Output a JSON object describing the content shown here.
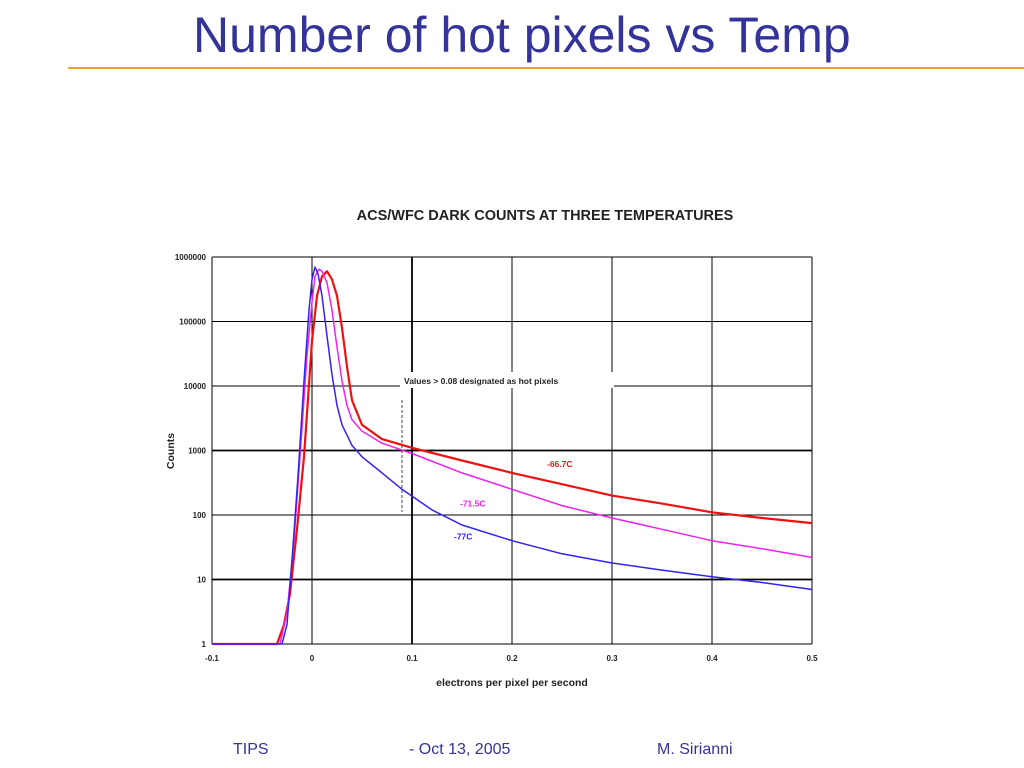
{
  "slide": {
    "title": "Number of hot pixels vs Temp",
    "accent_color": "#f0a030",
    "title_color": "#333399"
  },
  "footer": {
    "left": "TIPS",
    "middle": "- Oct 13, 2005",
    "right": "M. Sirianni"
  },
  "chart_data": {
    "type": "line",
    "title": "ACS/WFC DARK COUNTS AT THREE TEMPERATURES",
    "xlabel": "electrons per pixel per second",
    "ylabel": "Counts",
    "xlim": [
      -0.1,
      0.5
    ],
    "ylim": [
      1,
      1000000
    ],
    "yscale": "log",
    "grid": true,
    "x_ticks": [
      "-0.1",
      "0",
      "0.1",
      "0.2",
      "0.3",
      "0.4",
      "0.5"
    ],
    "y_ticks": [
      "1",
      "10",
      "100",
      "1000",
      "10000",
      "100000",
      "1000000"
    ],
    "annotation": {
      "text": "Values > 0.08 designated as hot pixels",
      "x": 0.09
    },
    "series": [
      {
        "name": "-66.7C",
        "color": "#ee1111",
        "x": [
          -0.1,
          -0.035,
          -0.028,
          -0.022,
          -0.015,
          -0.008,
          0.0,
          0.005,
          0.01,
          0.015,
          0.02,
          0.025,
          0.03,
          0.035,
          0.04,
          0.05,
          0.07,
          0.1,
          0.15,
          0.2,
          0.25,
          0.3,
          0.35,
          0.4,
          0.45,
          0.5
        ],
        "y": [
          1,
          1,
          2,
          6,
          60,
          800,
          50000,
          250000,
          500000,
          600000,
          450000,
          250000,
          80000,
          20000,
          6000,
          2500,
          1500,
          1100,
          700,
          450,
          300,
          200,
          150,
          110,
          90,
          75
        ]
      },
      {
        "name": "-71.5C",
        "color": "#ee22ee",
        "x": [
          -0.1,
          -0.032,
          -0.025,
          -0.018,
          -0.012,
          -0.005,
          0.0,
          0.003,
          0.007,
          0.01,
          0.015,
          0.02,
          0.025,
          0.03,
          0.035,
          0.04,
          0.05,
          0.07,
          0.1,
          0.15,
          0.2,
          0.25,
          0.3,
          0.35,
          0.4,
          0.45,
          0.5
        ],
        "y": [
          1,
          1,
          3,
          40,
          800,
          30000,
          200000,
          500000,
          650000,
          600000,
          400000,
          150000,
          40000,
          12000,
          5000,
          3000,
          2000,
          1300,
          900,
          450,
          250,
          140,
          90,
          60,
          40,
          30,
          22
        ]
      },
      {
        "name": "-77C",
        "color": "#3322ee",
        "x": [
          -0.1,
          -0.03,
          -0.025,
          -0.02,
          -0.014,
          -0.008,
          -0.003,
          0.0,
          0.003,
          0.006,
          0.01,
          0.015,
          0.02,
          0.025,
          0.03,
          0.04,
          0.05,
          0.07,
          0.09,
          0.12,
          0.15,
          0.2,
          0.25,
          0.3,
          0.35,
          0.4,
          0.45,
          0.5
        ],
        "y": [
          1,
          1,
          2,
          20,
          400,
          12000,
          150000,
          450000,
          700000,
          550000,
          250000,
          60000,
          15000,
          5000,
          2500,
          1200,
          800,
          450,
          250,
          120,
          70,
          40,
          25,
          18,
          14,
          11,
          9,
          7
        ]
      }
    ],
    "series_labels": [
      {
        "text": "-66.7C",
        "x": 0.235,
        "y": 550
      },
      {
        "text": "-71.5C",
        "x": 0.148,
        "y": 135
      },
      {
        "text": "-77C",
        "x": 0.142,
        "y": 42
      }
    ]
  }
}
